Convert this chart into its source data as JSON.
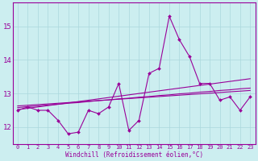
{
  "xlabel": "Windchill (Refroidissement éolien,°C)",
  "bg_color": "#cceef0",
  "grid_color": "#aad8dc",
  "line_color": "#990099",
  "x_values": [
    0,
    1,
    2,
    3,
    4,
    5,
    6,
    7,
    8,
    9,
    10,
    11,
    12,
    13,
    14,
    15,
    16,
    17,
    18,
    19,
    20,
    21,
    22,
    23
  ],
  "y_main": [
    12.5,
    12.6,
    12.5,
    12.5,
    12.2,
    11.8,
    11.85,
    12.5,
    12.4,
    12.6,
    13.3,
    11.9,
    12.2,
    13.6,
    13.75,
    15.3,
    14.6,
    14.1,
    13.3,
    13.3,
    12.8,
    12.9,
    12.5,
    12.9
  ],
  "y_reg1": [
    12.52,
    12.56,
    12.6,
    12.64,
    12.68,
    12.72,
    12.76,
    12.8,
    12.84,
    12.88,
    12.92,
    12.96,
    13.0,
    13.04,
    13.08,
    13.12,
    13.16,
    13.2,
    13.24,
    13.28,
    13.32,
    13.36,
    13.4,
    13.44
  ],
  "y_reg2": [
    12.58,
    12.61,
    12.63,
    12.66,
    12.68,
    12.71,
    12.73,
    12.76,
    12.79,
    12.81,
    12.84,
    12.86,
    12.89,
    12.91,
    12.94,
    12.96,
    12.99,
    13.01,
    13.04,
    13.06,
    13.09,
    13.11,
    13.14,
    13.16
  ],
  "y_reg3": [
    12.63,
    12.65,
    12.67,
    12.69,
    12.71,
    12.73,
    12.75,
    12.77,
    12.79,
    12.81,
    12.83,
    12.85,
    12.87,
    12.89,
    12.91,
    12.93,
    12.95,
    12.97,
    12.99,
    13.01,
    13.03,
    13.05,
    13.07,
    13.09
  ],
  "ylim": [
    11.5,
    15.7
  ],
  "xlim": [
    -0.5,
    23.5
  ],
  "yticks": [
    12,
    13,
    14,
    15
  ],
  "xticks": [
    0,
    1,
    2,
    3,
    4,
    5,
    6,
    7,
    8,
    9,
    10,
    11,
    12,
    13,
    14,
    15,
    16,
    17,
    18,
    19,
    20,
    21,
    22,
    23
  ],
  "xlabel_fontsize": 5.5,
  "ytick_fontsize": 6.5,
  "xtick_fontsize": 5.0
}
